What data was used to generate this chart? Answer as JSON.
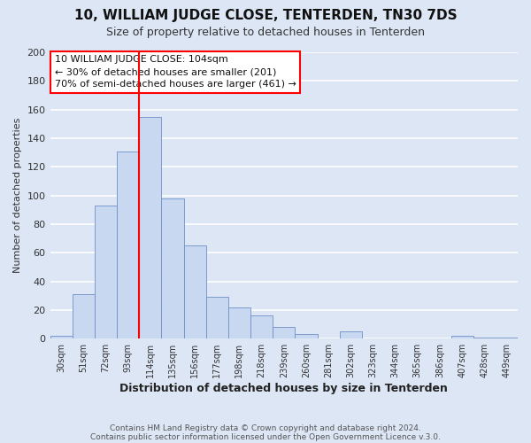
{
  "title": "10, WILLIAM JUDGE CLOSE, TENTERDEN, TN30 7DS",
  "subtitle": "Size of property relative to detached houses in Tenterden",
  "xlabel": "Distribution of detached houses by size in Tenterden",
  "ylabel": "Number of detached properties",
  "bar_labels": [
    "30sqm",
    "51sqm",
    "72sqm",
    "93sqm",
    "114sqm",
    "135sqm",
    "156sqm",
    "177sqm",
    "198sqm",
    "218sqm",
    "239sqm",
    "260sqm",
    "281sqm",
    "302sqm",
    "323sqm",
    "344sqm",
    "365sqm",
    "386sqm",
    "407sqm",
    "428sqm",
    "449sqm"
  ],
  "bar_values": [
    2,
    31,
    93,
    131,
    155,
    98,
    65,
    29,
    22,
    16,
    8,
    3,
    0,
    5,
    0,
    0,
    0,
    0,
    2,
    1,
    1
  ],
  "bar_color": "#c8d8f0",
  "bar_edge_color": "#7090c8",
  "vline_color": "red",
  "ylim": [
    0,
    200
  ],
  "yticks": [
    0,
    20,
    40,
    60,
    80,
    100,
    120,
    140,
    160,
    180,
    200
  ],
  "annotation_text": "10 WILLIAM JUDGE CLOSE: 104sqm\n← 30% of detached houses are smaller (201)\n70% of semi-detached houses are larger (461) →",
  "annotation_box_color": "white",
  "annotation_box_edge": "red",
  "footer_line1": "Contains HM Land Registry data © Crown copyright and database right 2024.",
  "footer_line2": "Contains public sector information licensed under the Open Government Licence v.3.0.",
  "background_color": "#dce6f5",
  "plot_background": "#dce6f5",
  "grid_color": "white",
  "title_fontsize": 11,
  "subtitle_fontsize": 9
}
